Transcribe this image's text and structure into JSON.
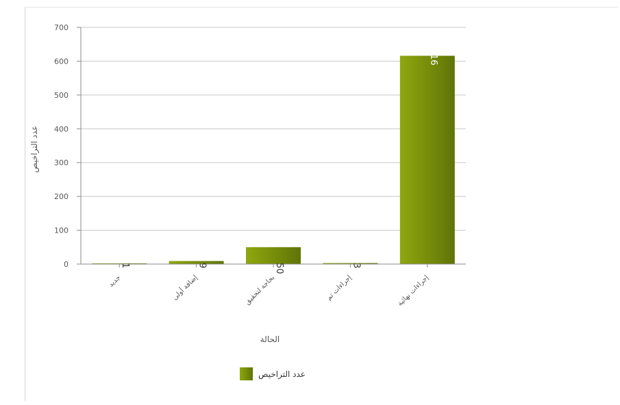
{
  "chart_data": {
    "type": "bar",
    "categories": [
      "جديد",
      "إضافة أولى",
      "بحاجة لتحقيق",
      "إجراءات تم",
      "إجراءات نهائية"
    ],
    "series": [
      {
        "name": "عدد التراخيص",
        "values": [
          1,
          9,
          50,
          3,
          616
        ]
      }
    ],
    "data_labels": [
      "1",
      "9",
      "50",
      "3",
      "616"
    ],
    "title": "",
    "xlabel": "الحالة",
    "ylabel": "عدد التراخيص",
    "ylim": [
      0,
      700
    ],
    "yticks": [
      0,
      100,
      200,
      300,
      400,
      500,
      600,
      700
    ],
    "ytick_labels": [
      "0",
      "100",
      "200",
      "300",
      "400",
      "500",
      "600",
      "700"
    ],
    "grid": true,
    "legend_position": "bottom-center",
    "colors": {
      "bar_light": "#8fa70e",
      "bar_dark": "#5f7407",
      "grid": "#c8c8c8",
      "axis": "#8a8a8a",
      "text": "#555555",
      "data_label_inside": "#ffffff",
      "data_label_outside": "#333333"
    }
  }
}
